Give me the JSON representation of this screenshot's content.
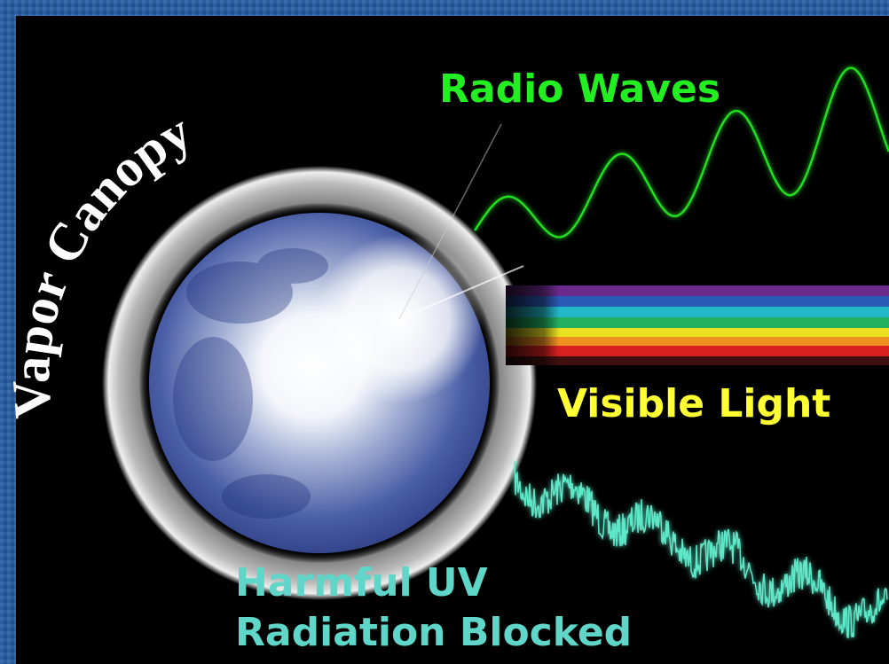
{
  "labels": {
    "canopy": "Vapor Canopy",
    "radio": "Radio Waves",
    "visible": "Visible Light",
    "uv": [
      "Harmful UV",
      "Radiation Blocked"
    ]
  }
}
